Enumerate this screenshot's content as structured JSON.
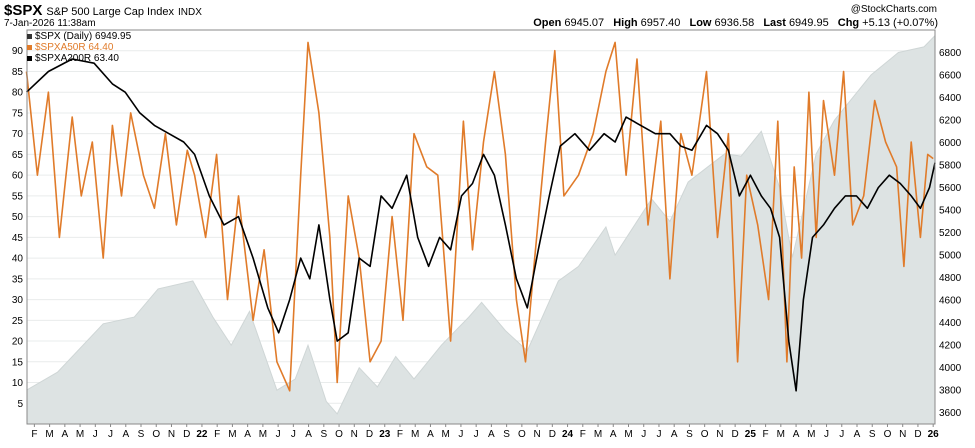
{
  "header": {
    "symbol": "$SPX",
    "name": "S&P 500 Large Cap Index",
    "exchange": "INDX",
    "date": "7-Jan-2026 11:38am",
    "brand": "@StockCharts.com",
    "ohlc": [
      {
        "label": "Open",
        "value": "6945.07"
      },
      {
        "label": "High",
        "value": "6957.40"
      },
      {
        "label": "Low",
        "value": "6936.58"
      },
      {
        "label": "Last",
        "value": "6949.95"
      },
      {
        "label": "Chg",
        "value": "+5.13 (+0.07%)"
      }
    ]
  },
  "legend": [
    {
      "text": "$SPX (Daily) 6949.95",
      "color": "#333333"
    },
    {
      "text": "$SPXA50R 64.40",
      "color": "#e07b2a"
    },
    {
      "text": "$SPXA200R 63.40",
      "color": "#000000"
    }
  ],
  "colors": {
    "spx_fill": "#dde3e3",
    "a50": "#e07b2a",
    "a200": "#000000",
    "grid": "#e9ecec"
  },
  "chart_data": {
    "type": "line",
    "title": "$SPX S&P 500 Large Cap Index",
    "x_range": [
      2021.083,
      2026.05
    ],
    "left_axis": {
      "ylim": [
        0,
        95
      ],
      "ticks": [
        5,
        10,
        15,
        20,
        25,
        30,
        35,
        40,
        45,
        50,
        55,
        60,
        65,
        70,
        75,
        80,
        85,
        90
      ]
    },
    "right_axis": {
      "ylim": [
        3500,
        7000
      ],
      "ticks": [
        3600,
        3800,
        4000,
        4200,
        4400,
        4600,
        4800,
        5000,
        5200,
        5400,
        5600,
        5800,
        6000,
        6200,
        6400,
        6600,
        6800
      ]
    },
    "x_month_labels": [
      "F",
      "M",
      "A",
      "M",
      "J",
      "J",
      "A",
      "S",
      "O",
      "N",
      "D",
      "22",
      "F",
      "M",
      "A",
      "M",
      "J",
      "J",
      "A",
      "S",
      "O",
      "N",
      "D",
      "23",
      "F",
      "M",
      "A",
      "M",
      "J",
      "J",
      "A",
      "S",
      "O",
      "N",
      "D",
      "24",
      "F",
      "M",
      "A",
      "M",
      "J",
      "J",
      "A",
      "S",
      "O",
      "N",
      "D",
      "25",
      "F",
      "M",
      "A",
      "M",
      "J",
      "J",
      "A",
      "S",
      "O",
      "N",
      "D",
      "26"
    ],
    "series": [
      {
        "name": "$SPX (Daily)",
        "axis": "right",
        "style": "area",
        "x": [
          2021.08,
          2021.25,
          2021.5,
          2021.67,
          2021.8,
          2021.99,
          2022.1,
          2022.2,
          2022.3,
          2022.45,
          2022.55,
          2022.62,
          2022.72,
          2022.78,
          2022.9,
          2023.0,
          2023.1,
          2023.2,
          2023.35,
          2023.5,
          2023.57,
          2023.7,
          2023.82,
          2023.99,
          2024.1,
          2024.25,
          2024.3,
          2024.5,
          2024.6,
          2024.7,
          2024.9,
          2024.99,
          2025.1,
          2025.2,
          2025.27,
          2025.4,
          2025.5,
          2025.7,
          2025.85,
          2025.99,
          2026.05
        ],
        "values": [
          3800,
          3960,
          4390,
          4450,
          4700,
          4770,
          4450,
          4200,
          4500,
          3800,
          3900,
          4200,
          3700,
          3590,
          4000,
          3830,
          4100,
          3900,
          4200,
          4450,
          4580,
          4330,
          4150,
          4770,
          4900,
          5250,
          5000,
          5500,
          5300,
          5650,
          5900,
          5880,
          6100,
          5600,
          4980,
          5900,
          6200,
          6600,
          6800,
          6850,
          6950
        ]
      },
      {
        "name": "$SPXA50R",
        "axis": "left",
        "style": "line",
        "x": [
          2021.08,
          2021.14,
          2021.2,
          2021.26,
          2021.33,
          2021.38,
          2021.44,
          2021.5,
          2021.55,
          2021.6,
          2021.65,
          2021.72,
          2021.78,
          2021.84,
          2021.9,
          2021.96,
          2022.0,
          2022.06,
          2022.12,
          2022.18,
          2022.24,
          2022.32,
          2022.38,
          2022.45,
          2022.52,
          2022.58,
          2022.62,
          2022.68,
          2022.74,
          2022.78,
          2022.84,
          2022.9,
          2022.96,
          2023.02,
          2023.08,
          2023.14,
          2023.2,
          2023.27,
          2023.33,
          2023.4,
          2023.47,
          2023.52,
          2023.58,
          2023.64,
          2023.7,
          2023.76,
          2023.81,
          2023.86,
          2023.92,
          2023.97,
          2024.02,
          2024.1,
          2024.18,
          2024.25,
          2024.3,
          2024.36,
          2024.42,
          2024.48,
          2024.55,
          2024.6,
          2024.66,
          2024.72,
          2024.8,
          2024.86,
          2024.92,
          2024.97,
          2025.02,
          2025.08,
          2025.14,
          2025.19,
          2025.24,
          2025.28,
          2025.32,
          2025.36,
          2025.4,
          2025.44,
          2025.5,
          2025.55,
          2025.6,
          2025.66,
          2025.72,
          2025.78,
          2025.84,
          2025.88,
          2025.92,
          2025.97,
          2026.01,
          2026.04
        ],
        "values": [
          85,
          60,
          80,
          45,
          74,
          55,
          68,
          40,
          72,
          55,
          75,
          60,
          52,
          70,
          48,
          66,
          60,
          45,
          65,
          30,
          55,
          25,
          42,
          15,
          8,
          60,
          92,
          75,
          45,
          10,
          55,
          40,
          15,
          20,
          50,
          25,
          70,
          62,
          60,
          20,
          73,
          42,
          68,
          85,
          65,
          30,
          15,
          40,
          68,
          90,
          55,
          60,
          70,
          85,
          92,
          60,
          88,
          48,
          73,
          35,
          70,
          60,
          85,
          45,
          70,
          15,
          60,
          48,
          30,
          73,
          15,
          62,
          40,
          80,
          45,
          78,
          60,
          85,
          48,
          55,
          78,
          68,
          62,
          38,
          68,
          45,
          65,
          64
        ]
      },
      {
        "name": "$SPXA200R",
        "axis": "left",
        "style": "line",
        "x": [
          2021.08,
          2021.2,
          2021.33,
          2021.45,
          2021.55,
          2021.62,
          2021.7,
          2021.78,
          2021.86,
          2021.94,
          2022.0,
          2022.08,
          2022.16,
          2022.24,
          2022.32,
          2022.4,
          2022.46,
          2022.52,
          2022.58,
          2022.63,
          2022.68,
          2022.74,
          2022.78,
          2022.84,
          2022.9,
          2022.96,
          2023.02,
          2023.08,
          2023.16,
          2023.22,
          2023.28,
          2023.34,
          2023.4,
          2023.46,
          2023.52,
          2023.58,
          2023.64,
          2023.7,
          2023.76,
          2023.82,
          2023.88,
          2023.94,
          2024.0,
          2024.08,
          2024.16,
          2024.24,
          2024.3,
          2024.36,
          2024.44,
          2024.52,
          2024.6,
          2024.66,
          2024.72,
          2024.8,
          2024.86,
          2024.92,
          2024.98,
          2025.04,
          2025.1,
          2025.15,
          2025.2,
          2025.25,
          2025.29,
          2025.33,
          2025.38,
          2025.44,
          2025.5,
          2025.56,
          2025.62,
          2025.68,
          2025.74,
          2025.8,
          2025.86,
          2025.92,
          2025.97,
          2026.02,
          2026.05
        ],
        "values": [
          80,
          85,
          88,
          87,
          82,
          80,
          75,
          72,
          70,
          68,
          65,
          55,
          48,
          50,
          40,
          28,
          22,
          30,
          40,
          35,
          48,
          30,
          20,
          22,
          40,
          38,
          55,
          52,
          60,
          45,
          38,
          45,
          42,
          55,
          58,
          65,
          60,
          48,
          35,
          28,
          42,
          55,
          67,
          70,
          66,
          70,
          68,
          74,
          72,
          70,
          70,
          67,
          66,
          72,
          70,
          66,
          55,
          60,
          55,
          52,
          45,
          20,
          8,
          30,
          45,
          48,
          52,
          55,
          55,
          52,
          57,
          60,
          58,
          55,
          52,
          57,
          63
        ]
      }
    ]
  }
}
